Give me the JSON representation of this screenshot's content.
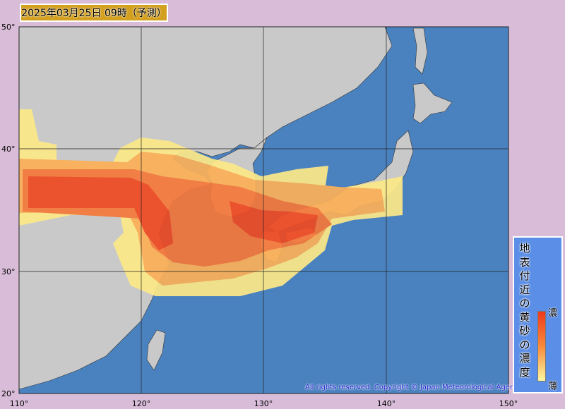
{
  "title": "2025年03月25日 09時（予測）",
  "axes": {
    "lat_labels": [
      "50°",
      "40°",
      "30°",
      "20°"
    ],
    "lon_labels": [
      "110°",
      "120°",
      "130°",
      "140°",
      "150°"
    ]
  },
  "legend": {
    "title": "地表付近の黄砂の濃度",
    "high_label": "濃",
    "low_label": "薄",
    "colors": {
      "high": "#ee3a1c",
      "mid": "#f98a3a",
      "low": "#fff8a0"
    }
  },
  "copyright": "All rights reserved. Copyright © Japan Meteorological Agency",
  "colors": {
    "ocean": "#4a82c0",
    "land": "#c8c8c8",
    "background": "#d8bcd8",
    "title_box": "#d4a020"
  }
}
